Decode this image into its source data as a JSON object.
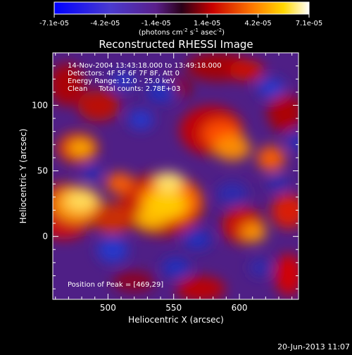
{
  "colorbar": {
    "tick_labels": [
      "-7.1e-05",
      "-4.2e-05",
      "-1.4e-05",
      "1.4e-05",
      "4.2e-05",
      "7.1e-05"
    ],
    "unit_label": "(photons cm",
    "unit_exp1": "-2",
    "unit_mid": " s",
    "unit_exp2": "-1",
    "unit_end": " asec",
    "unit_exp3": "-2",
    "unit_close": ")",
    "range": [
      -7.1e-05,
      7.1e-05
    ]
  },
  "image": {
    "title": "Reconstructed RHESSI Image",
    "info_lines": [
      "14-Nov-2004 13:43:18.000 to 13:49:18.000",
      "Detectors: 4F 5F 6F 7F 8F, Att 0",
      "Energy Range: 12.0 - 25.0 keV",
      "Clean     Total counts: 2.78E+03"
    ],
    "peak_text": "Position of Peak = [469,29]",
    "xlabel": "Heliocentric X (arcsec)",
    "ylabel": "Heliocentric Y (arcsec)",
    "x_ticks": [
      "500",
      "550",
      "600"
    ],
    "y_ticks": [
      "0",
      "50",
      "100"
    ],
    "xlim": [
      458,
      645
    ],
    "ylim": [
      -48,
      140
    ]
  },
  "footer": {
    "timestamp": "20-Jun-2013 11:07"
  }
}
